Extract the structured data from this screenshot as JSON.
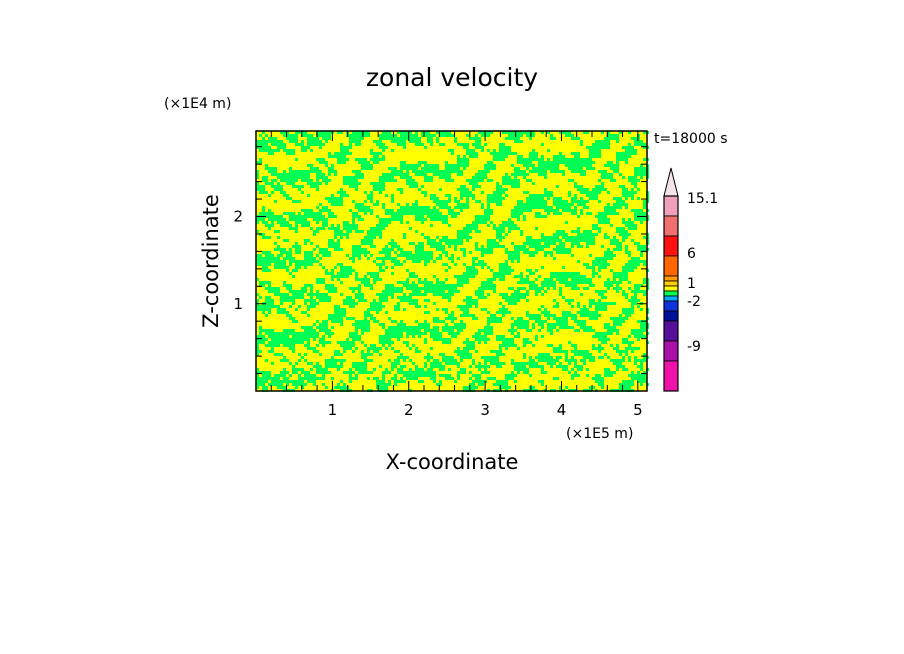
{
  "chart_data": {
    "type": "heatmap",
    "title": "zonal velocity",
    "xlabel": "X-coordinate",
    "ylabel": "Z-coordinate",
    "x_scale_label": "(×1E5 m)",
    "y_scale_label": "(×1E4 m)",
    "time_label": "t=18000 s",
    "xlim": [
      0,
      5.12
    ],
    "ylim": [
      0,
      2.98
    ],
    "x_ticks": [
      1,
      2,
      3,
      4,
      5
    ],
    "x_tick_labels": [
      "1",
      "2",
      "3",
      "4",
      "5"
    ],
    "y_ticks": [
      1,
      2
    ],
    "y_tick_labels": [
      "1",
      "2"
    ],
    "field_colors": {
      "yellow": "#ffff00",
      "green": "#00ff55"
    },
    "colorbar": {
      "labels": [
        {
          "text": "15.1",
          "value": 15.1
        },
        {
          "text": "6",
          "value": 6
        },
        {
          "text": "1",
          "value": 1
        },
        {
          "text": "-2",
          "value": -2
        },
        {
          "text": "-9",
          "value": -9
        }
      ],
      "segments": [
        {
          "color": "#f0a0b8",
          "h": 2
        },
        {
          "color": "#f07070",
          "h": 2
        },
        {
          "color": "#ff1111",
          "h": 2
        },
        {
          "color": "#ff6600",
          "h": 2
        },
        {
          "color": "#ff9900",
          "h": 0.5
        },
        {
          "color": "#ffcc00",
          "h": 0.5
        },
        {
          "color": "#ffff00",
          "h": 0.5
        },
        {
          "color": "#00ff55",
          "h": 0.5
        },
        {
          "color": "#00aaff",
          "h": 0.5
        },
        {
          "color": "#1133dd",
          "h": 1
        },
        {
          "color": "#001199",
          "h": 1
        },
        {
          "color": "#551199",
          "h": 2
        },
        {
          "color": "#aa11aa",
          "h": 2
        },
        {
          "color": "#ee11aa",
          "h": 3
        }
      ],
      "extend_top": true,
      "extend_top_color": "#f4e4e8"
    }
  }
}
